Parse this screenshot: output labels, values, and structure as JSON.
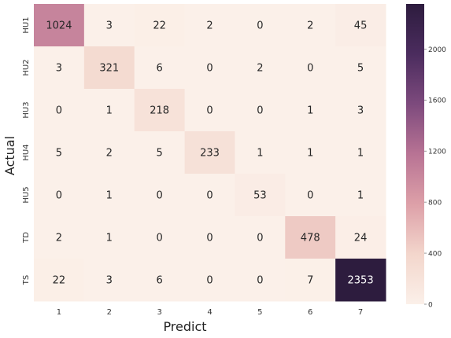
{
  "chart_data": {
    "type": "heatmap",
    "xlabel": "Predict",
    "ylabel": "Actual",
    "x_categories": [
      "1",
      "2",
      "3",
      "4",
      "5",
      "6",
      "7"
    ],
    "y_categories": [
      "HU1",
      "HU2",
      "HU3",
      "HU4",
      "HU5",
      "TD",
      "TS"
    ],
    "values": [
      [
        1024,
        3,
        22,
        2,
        0,
        2,
        45
      ],
      [
        3,
        321,
        6,
        0,
        2,
        0,
        5
      ],
      [
        0,
        1,
        218,
        0,
        0,
        1,
        3
      ],
      [
        5,
        2,
        5,
        233,
        1,
        1,
        1
      ],
      [
        0,
        1,
        0,
        0,
        53,
        0,
        1
      ],
      [
        2,
        1,
        0,
        0,
        0,
        478,
        24
      ],
      [
        22,
        3,
        6,
        0,
        0,
        7,
        2353
      ]
    ],
    "colorbar": {
      "range": [
        0,
        2353
      ],
      "ticks": [
        0,
        400,
        800,
        1200,
        1600,
        2000
      ]
    },
    "colormap": {
      "stops": [
        "#fbf0e9",
        "#f3d6cc",
        "#dda0a8",
        "#b87394",
        "#7d4a7d",
        "#4b2c5e",
        "#2d1c3e"
      ]
    }
  }
}
